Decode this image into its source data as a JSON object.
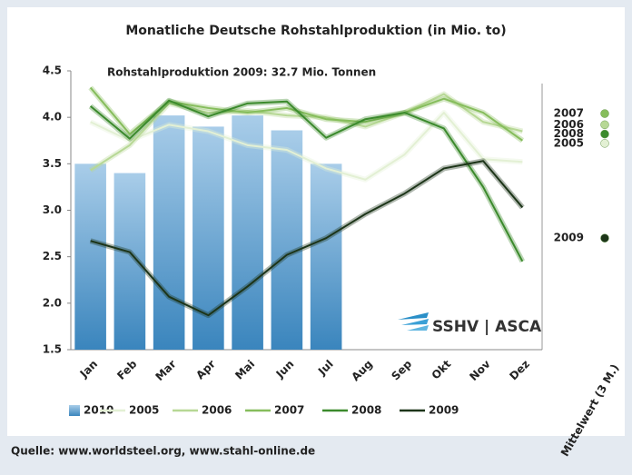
{
  "chart_data": {
    "type": "combo",
    "title": "Monatliche Deutsche Rohstahlproduktion (in Mio. to)",
    "subtitle": "Rohstahlproduktion 2009: 32.7 Mio. Tonnen",
    "source": "Quelle: www.worldsteel.org, www.stahl-online.de",
    "logo": "SSHV | ASCA",
    "mean_label": "Mittelwert (3 M.)",
    "categories": [
      "Jan",
      "Feb",
      "Mar",
      "Apr",
      "Mai",
      "Jun",
      "Jul",
      "Aug",
      "Sep",
      "Okt",
      "Nov",
      "Dez"
    ],
    "ylim": [
      1.5,
      4.5
    ],
    "yticks": [
      1.5,
      {
        "value": 2,
        "label": "2.0"
      },
      2.5,
      {
        "value": 3,
        "label": "3.0"
      },
      3.5,
      {
        "value": 4,
        "label": "4.0"
      },
      4.5
    ],
    "grid": false,
    "series": [
      {
        "name": "2010",
        "type": "bar",
        "color": "#4f97c9",
        "values": [
          3.5,
          3.4,
          4.02,
          3.9,
          4.02,
          3.86,
          3.5,
          null,
          null,
          null,
          null,
          null
        ]
      },
      {
        "name": "2005",
        "type": "line",
        "color": "#e3f0d4",
        "values": [
          3.95,
          3.75,
          3.92,
          3.85,
          3.7,
          3.65,
          3.45,
          3.33,
          3.6,
          4.05,
          3.55,
          3.52
        ],
        "mean": 3.72
      },
      {
        "name": "2006",
        "type": "line",
        "color": "#b7d895",
        "values": [
          3.43,
          3.7,
          4.15,
          4.05,
          4.07,
          4.02,
          4.0,
          3.9,
          4.05,
          4.25,
          3.95,
          3.85
        ],
        "mean": 3.92
      },
      {
        "name": "2007",
        "type": "line",
        "color": "#86bd5c",
        "values": [
          4.32,
          3.82,
          4.17,
          4.1,
          4.05,
          4.1,
          3.98,
          3.95,
          4.05,
          4.2,
          4.05,
          3.75
        ],
        "mean": 4.04
      },
      {
        "name": "2008",
        "type": "line",
        "color": "#3b8a2c",
        "values": [
          4.12,
          3.77,
          4.18,
          4.01,
          4.15,
          4.17,
          3.78,
          3.98,
          4.05,
          3.88,
          3.25,
          2.45
        ],
        "mean": 3.82
      },
      {
        "name": "2009",
        "type": "line",
        "color": "#1d3519",
        "values": [
          2.67,
          2.55,
          2.07,
          1.87,
          2.18,
          2.52,
          2.7,
          2.96,
          3.18,
          3.45,
          3.53,
          3.03
        ],
        "mean": 2.7
      }
    ]
  }
}
